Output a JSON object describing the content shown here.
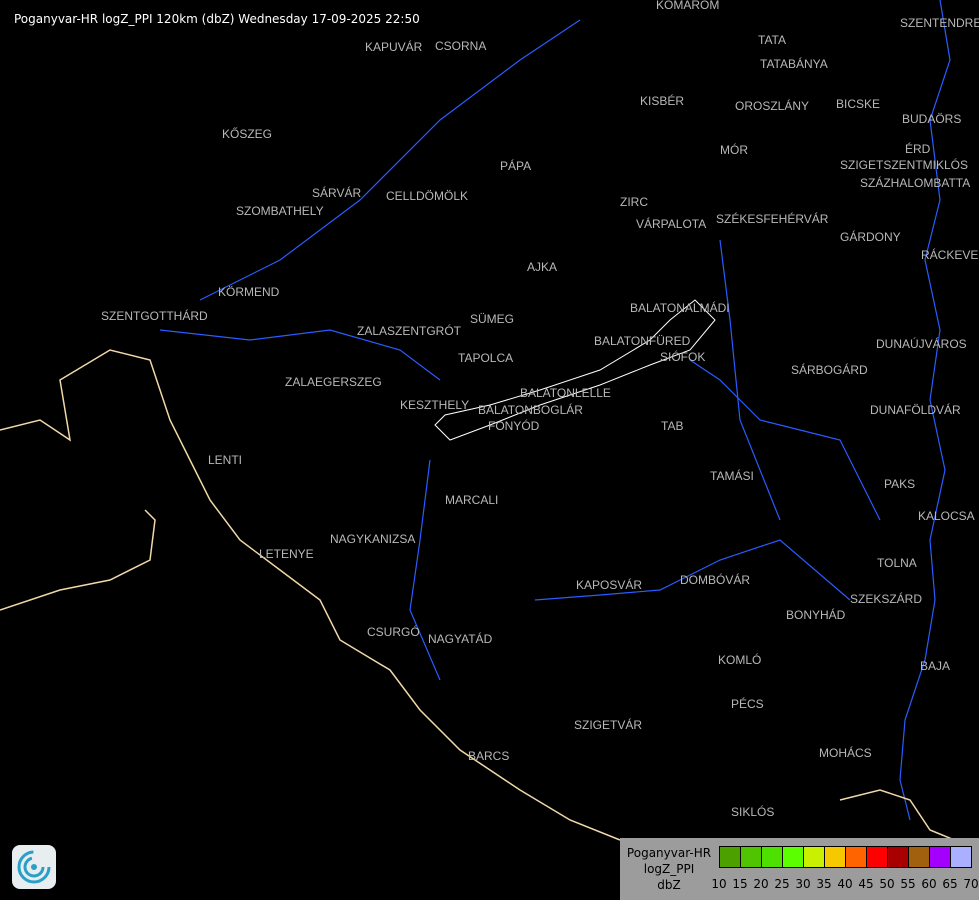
{
  "header": {
    "title": "Poganyvar-HR logZ_PPI 120km (dbZ) Wednesday 17-09-2025 22:50"
  },
  "cities": [
    "KOMÁROM",
    "SZENTENDRE",
    "KAPUVÁR",
    "CSORNA",
    "TATA",
    "TATABÁNYA",
    "KISBÉR",
    "OROSZLÁNY",
    "BICSKE",
    "BUDAÖRS",
    "KŐSZEG",
    "PÁPA",
    "MÓR",
    "ÉRD",
    "SZIGETSZENTMIKLÓS",
    "SZÁZHALOMBATTA",
    "SZOMBATHELY",
    "SÁRVÁR",
    "CELLDÖMÖLK",
    "ZIRC",
    "VÁRPALOTA",
    "SZÉKESFEHÉRVÁR",
    "GÁRDONY",
    "RÁCKEVE",
    "AJKA",
    "KÖRMEND",
    "BALATONALMÁDI",
    "SZENTGOTTHÁRD",
    "SÜMEG",
    "ZALASZENTGRÓT",
    "BALATONFÜRED",
    "SIÓFOK",
    "DUNAÚJVÁROS",
    "TAPOLCA",
    "SÁRBOGÁRD",
    "ZALAEGERSZEG",
    "BALATONLELLE",
    "BALATONBOGLÁR",
    "KESZTHELY",
    "FONYÓD",
    "DUNAFÖLDVÁR",
    "TAB",
    "LENTI",
    "TAMÁSI",
    "PAKS",
    "MARCALI",
    "KALOCSA",
    "NAGYKANIZSA",
    "LETENYE",
    "TOLNA",
    "DOMBÓVÁR",
    "KAPOSVÁR",
    "SZEKSZÁRD",
    "BONYHÁD",
    "CSURGÓ",
    "NAGYATÁD",
    "KOMLÓ",
    "BAJA",
    "PÉCS",
    "SZIGETVÁR",
    "MOHÁCS",
    "BARCS",
    "SIKLÓS"
  ],
  "legend": {
    "station": "Poganyvar-HR",
    "product": "logZ_PPI",
    "unit": "dbZ",
    "ticks": [
      "10",
      "15",
      "20",
      "25",
      "30",
      "35",
      "40",
      "45",
      "50",
      "55",
      "60",
      "65",
      "70"
    ],
    "colors": [
      "#4ca000",
      "#50c400",
      "#4ee000",
      "#5cff00",
      "#c8f000",
      "#f5c800",
      "#ff6400",
      "#ff0000",
      "#a80000",
      "#a0600e",
      "#a400ff",
      "#aab0ff"
    ]
  },
  "colors": {
    "river": "#2a5cff",
    "border": "#f0d8a8",
    "outline": "#ffffff"
  },
  "logo": {
    "icon": "swirl-logo-icon"
  }
}
